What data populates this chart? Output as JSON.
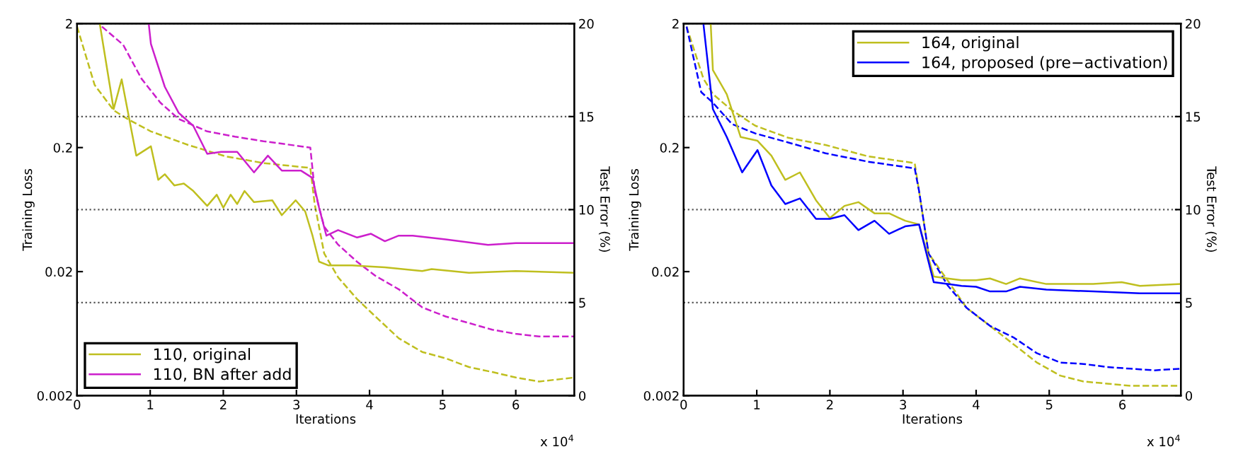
{
  "chart_data": [
    {
      "type": "line",
      "xlabel": "Iterations",
      "ylabel": "Training Loss",
      "y2label": "Test Error (%)",
      "annotations": [
        "x 10$^{4}$"
      ],
      "xlim": [
        0,
        6.8
      ],
      "xticks": [
        0,
        1,
        2,
        3,
        4,
        5,
        6
      ],
      "ylim": [
        0.002,
        2
      ],
      "yticks": [
        0.002,
        0.02,
        0.2,
        2
      ],
      "y2lim": [
        0,
        20
      ],
      "y2ticks": [
        0,
        5,
        10,
        15,
        20
      ],
      "log": "y",
      "grid": "y2",
      "legend": "bottom left",
      "series": [
        {
          "name": "110, original",
          "color": "#bfbf1f",
          "axis": "y2",
          "line_style": "solid",
          "x": [
            0.31,
            0.5,
            0.61,
            0.81,
            1.01,
            1.11,
            1.2,
            1.33,
            1.46,
            1.59,
            1.78,
            1.91,
            2.0,
            2.1,
            2.19,
            2.29,
            2.42,
            2.67,
            2.8,
            2.99,
            3.12,
            3.22,
            3.31,
            3.44,
            3.76,
            4.21,
            4.72,
            4.85,
            5.36,
            6.0,
            6.8
          ],
          "values": [
            20,
            15.4,
            17.0,
            12.9,
            13.4,
            11.6,
            11.9,
            11.3,
            11.4,
            11.0,
            10.2,
            10.8,
            10.1,
            10.8,
            10.3,
            11.0,
            10.4,
            10.5,
            9.7,
            10.5,
            9.9,
            8.6,
            7.2,
            7.0,
            7.0,
            6.9,
            6.7,
            6.8,
            6.6,
            6.7,
            6.6
          ]
        },
        {
          "name": "110, BN after add",
          "color": "#cc1fcc",
          "axis": "y2",
          "line_style": "solid",
          "x": [
            0.98,
            1.01,
            1.2,
            1.39,
            1.59,
            1.78,
            1.97,
            2.19,
            2.42,
            2.61,
            2.8,
            3.06,
            3.22,
            3.31,
            3.41,
            3.57,
            3.83,
            4.02,
            4.21,
            4.4,
            4.59,
            5.04,
            5.62,
            6.0,
            6.8
          ],
          "values": [
            20,
            18.9,
            16.6,
            15.2,
            14.5,
            13.0,
            13.1,
            13.1,
            12.0,
            12.9,
            12.1,
            12.1,
            11.7,
            10.1,
            8.6,
            8.9,
            8.5,
            8.7,
            8.3,
            8.6,
            8.6,
            8.4,
            8.1,
            8.2,
            8.2
          ]
        },
        {
          "color": "#bfbf1f",
          "axis": "y",
          "line_style": "dashed",
          "x": [
            0,
            0.24,
            0.5,
            0.69,
            1.01,
            1.52,
            2.03,
            2.55,
            3.19,
            3.25,
            3.38,
            3.57,
            3.83,
            4.08,
            4.4,
            4.72,
            5.04,
            5.36,
            5.68,
            6.0,
            6.32,
            6.8
          ],
          "values": [
            1.89,
            0.64,
            0.4,
            0.34,
            0.27,
            0.21,
            0.17,
            0.15,
            0.137,
            0.07,
            0.028,
            0.018,
            0.012,
            0.0087,
            0.0058,
            0.0045,
            0.004,
            0.0034,
            0.0031,
            0.0028,
            0.0026,
            0.0028
          ]
        },
        {
          "color": "#cc1fcc",
          "axis": "y",
          "line_style": "dashed",
          "x": [
            0.34,
            0.63,
            0.88,
            1.14,
            1.39,
            1.78,
            2.16,
            2.55,
            3.19,
            3.25,
            3.38,
            3.57,
            3.83,
            4.08,
            4.4,
            4.72,
            5.04,
            5.36,
            5.68,
            6.0,
            6.32,
            6.8
          ],
          "values": [
            1.89,
            1.35,
            0.72,
            0.46,
            0.34,
            0.27,
            0.245,
            0.225,
            0.2,
            0.09,
            0.046,
            0.033,
            0.024,
            0.0185,
            0.0144,
            0.0103,
            0.0087,
            0.0077,
            0.0068,
            0.0063,
            0.006,
            0.006
          ]
        }
      ]
    },
    {
      "type": "line",
      "xlabel": "Iterations",
      "ylabel": "Training Loss",
      "y2label": "Test Error (%)",
      "annotations": [
        "x 10$^{4}$"
      ],
      "xlim": [
        0,
        6.8
      ],
      "xticks": [
        0,
        1,
        2,
        3,
        4,
        5,
        6
      ],
      "ylim": [
        0.002,
        2
      ],
      "yticks": [
        0.002,
        0.02,
        0.2,
        2
      ],
      "y2lim": [
        0,
        20
      ],
      "y2ticks": [
        0,
        5,
        10,
        15,
        20
      ],
      "log": "y",
      "grid": "y2",
      "legend": "top right",
      "series": [
        {
          "name": "164, original",
          "color": "#bfbf1f",
          "axis": "y2",
          "line_style": "solid",
          "x": [
            0.37,
            0.4,
            0.59,
            0.78,
            1.01,
            1.2,
            1.39,
            1.59,
            1.81,
            2.0,
            2.2,
            2.39,
            2.61,
            2.81,
            3.03,
            3.22,
            3.42,
            3.61,
            3.8,
            4.0,
            4.19,
            4.41,
            4.6,
            4.96,
            5.6,
            5.99,
            6.24,
            6.8
          ],
          "values": [
            20,
            17.5,
            16.2,
            13.9,
            13.7,
            12.9,
            11.6,
            12.0,
            10.5,
            9.55,
            10.2,
            10.4,
            9.8,
            9.8,
            9.4,
            9.2,
            6.4,
            6.3,
            6.2,
            6.2,
            6.3,
            6.0,
            6.3,
            6.0,
            6.0,
            6.1,
            5.9,
            6.0
          ]
        },
        {
          "name": "164, proposed (pre−activation)",
          "color": "#0000ff",
          "axis": "y2",
          "line_style": "solid",
          "x": [
            0.27,
            0.4,
            0.59,
            0.8,
            1.01,
            1.2,
            1.39,
            1.59,
            1.81,
            2.0,
            2.2,
            2.39,
            2.61,
            2.81,
            3.03,
            3.22,
            3.42,
            3.61,
            3.8,
            4.0,
            4.19,
            4.41,
            4.6,
            4.96,
            5.6,
            6.24,
            6.8
          ],
          "values": [
            20,
            15.4,
            13.9,
            12.0,
            13.2,
            11.3,
            10.3,
            10.6,
            9.5,
            9.5,
            9.7,
            8.9,
            9.4,
            8.7,
            9.1,
            9.2,
            6.1,
            6.0,
            5.9,
            5.85,
            5.6,
            5.6,
            5.85,
            5.7,
            5.6,
            5.5,
            5.5
          ]
        },
        {
          "color": "#bfbf1f",
          "axis": "y",
          "line_style": "dashed",
          "x": [
            0.04,
            0.27,
            0.4,
            0.66,
            0.98,
            1.43,
            1.94,
            2.52,
            3.16,
            3.22,
            3.35,
            3.61,
            3.87,
            4.19,
            4.51,
            4.83,
            5.15,
            5.47,
            5.79,
            6.11,
            6.44,
            6.8
          ],
          "values": [
            1.89,
            0.72,
            0.54,
            0.4,
            0.3,
            0.24,
            0.21,
            0.17,
            0.15,
            0.089,
            0.028,
            0.017,
            0.0102,
            0.0073,
            0.0052,
            0.0037,
            0.0029,
            0.0026,
            0.0025,
            0.0024,
            0.0024,
            0.0024
          ]
        },
        {
          "color": "#0000ff",
          "axis": "y",
          "line_style": "dashed",
          "x": [
            0.04,
            0.24,
            0.4,
            0.66,
            0.98,
            1.43,
            1.94,
            2.52,
            3.16,
            3.22,
            3.35,
            3.61,
            3.87,
            4.19,
            4.51,
            4.83,
            5.15,
            5.47,
            5.79,
            6.11,
            6.44,
            6.8
          ],
          "values": [
            1.89,
            0.56,
            0.46,
            0.31,
            0.26,
            0.22,
            0.18,
            0.154,
            0.136,
            0.089,
            0.028,
            0.0155,
            0.0102,
            0.0073,
            0.0059,
            0.0044,
            0.0037,
            0.0036,
            0.0034,
            0.0033,
            0.0032,
            0.0033
          ]
        }
      ]
    }
  ]
}
